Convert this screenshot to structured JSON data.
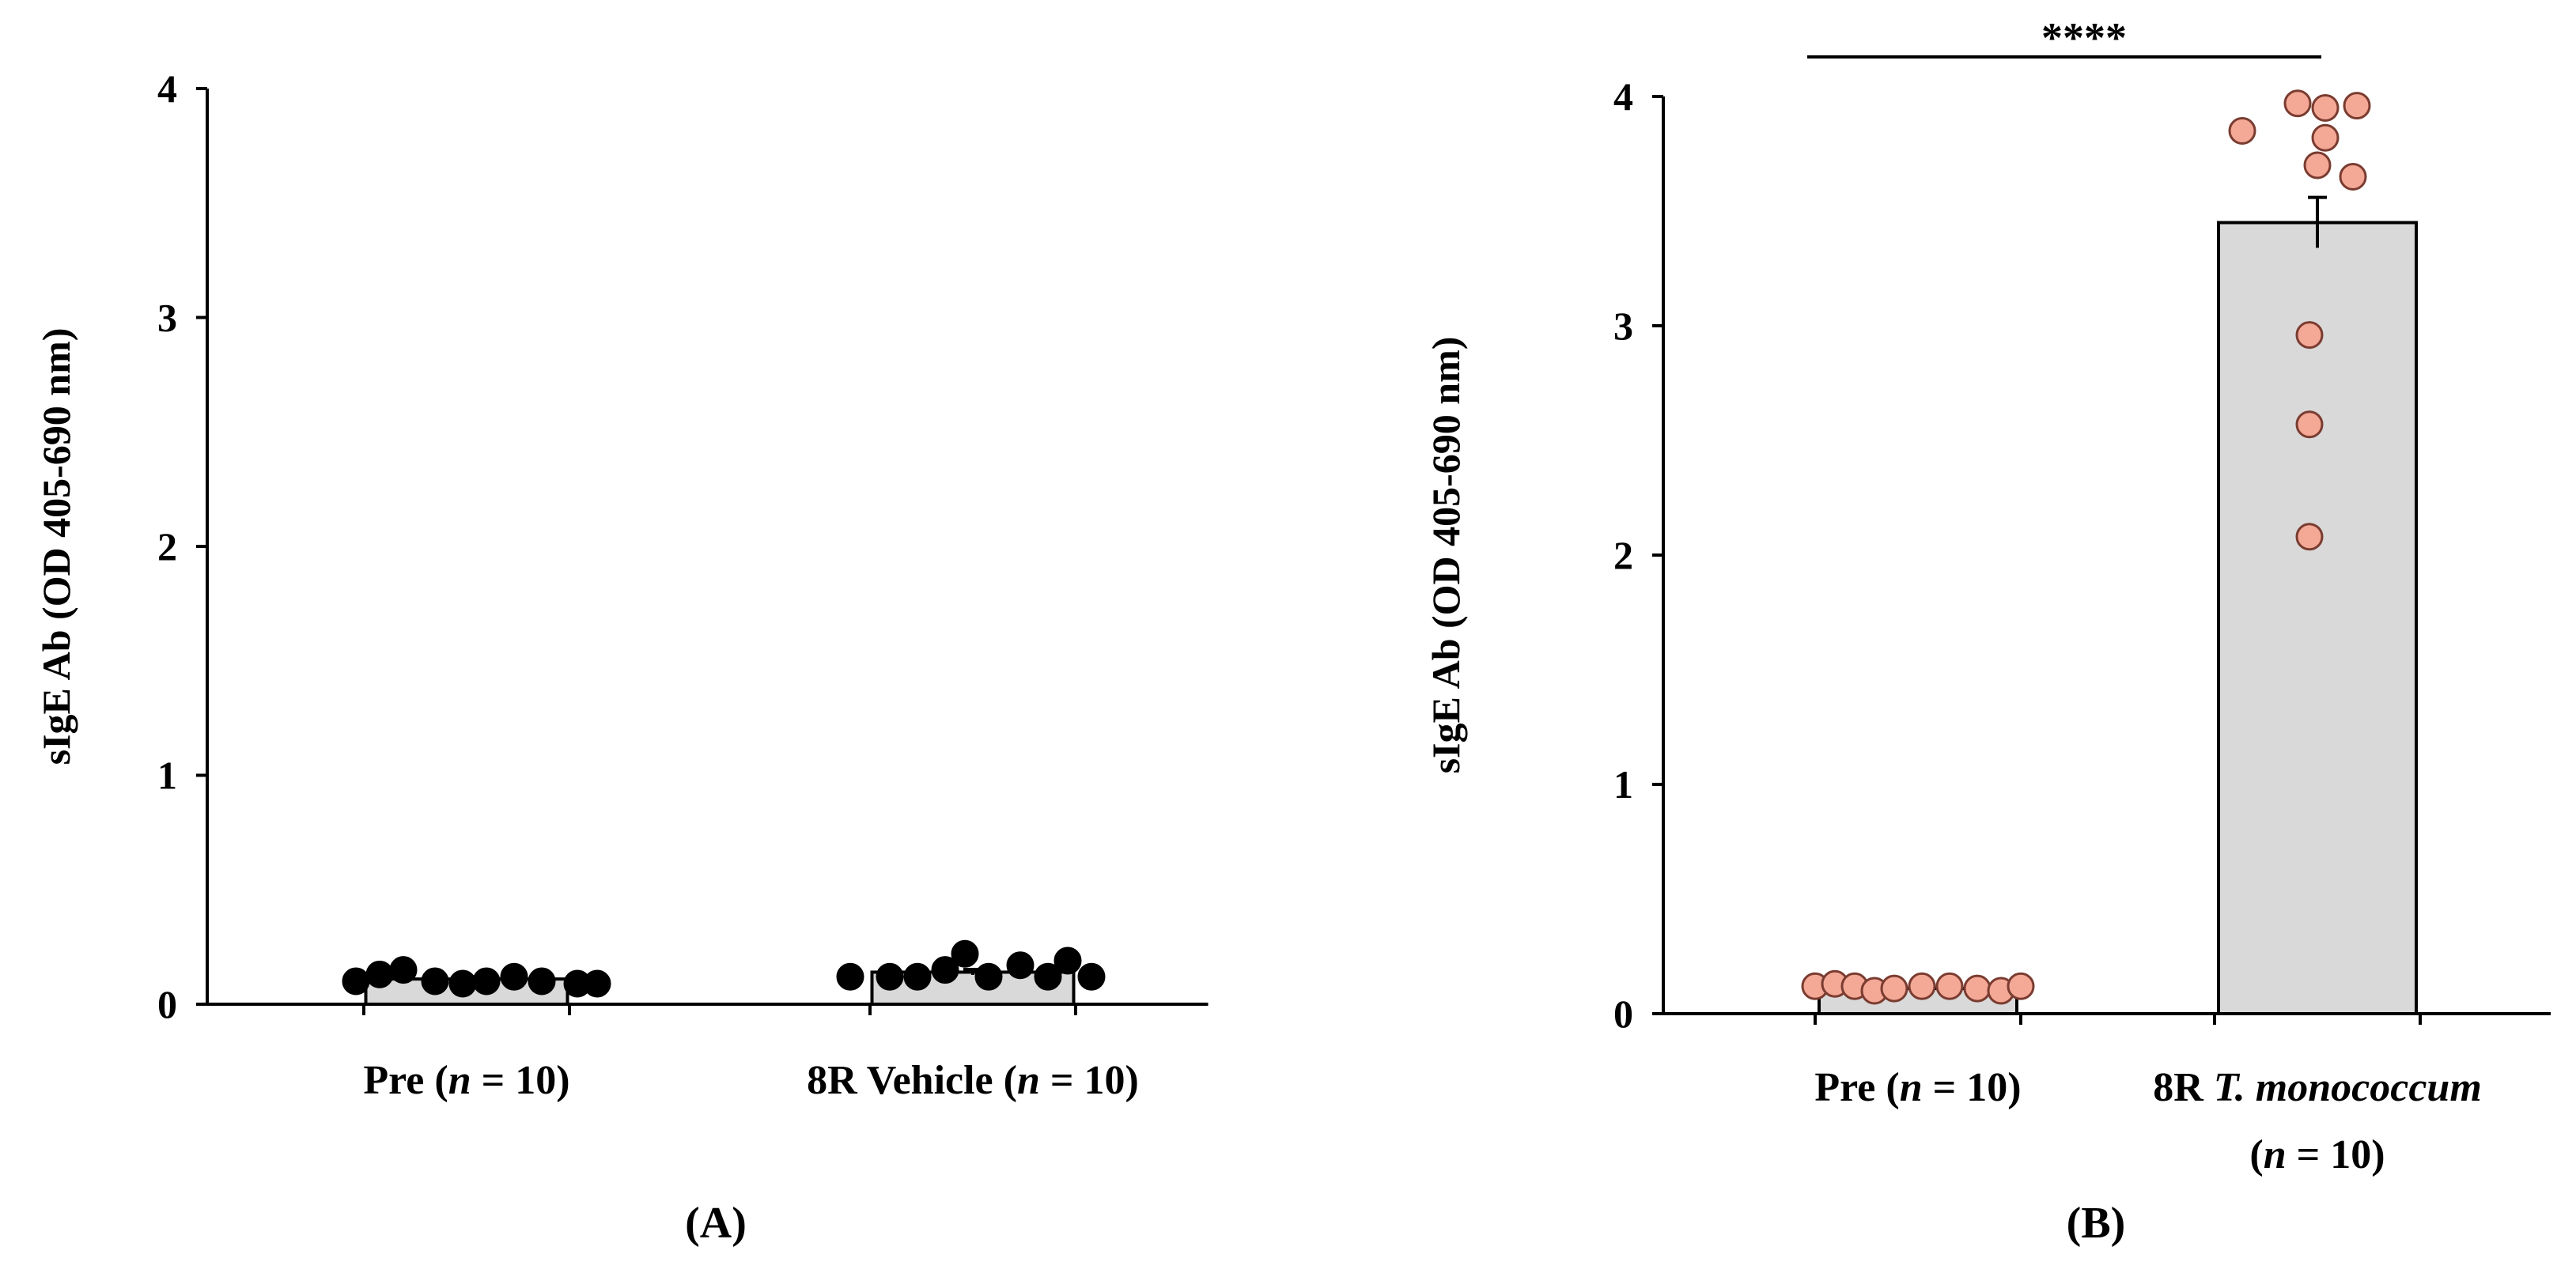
{
  "chart_data": [
    {
      "panel_label": "(A)",
      "type": "bar",
      "ylabel": "sIgE Ab (OD 405-690 nm)",
      "ylim": [
        0,
        4
      ],
      "yticks": [
        "0",
        "1",
        "2",
        "3",
        "4"
      ],
      "categories": [
        {
          "parts": [
            {
              "t": "Pre ("
            },
            {
              "t": "n",
              "i": true
            },
            {
              "t": " = 10)"
            }
          ],
          "lines": 1
        },
        {
          "parts": [
            {
              "t": "8R Vehicle ("
            },
            {
              "t": "n",
              "i": true
            },
            {
              "t": " = 10)"
            }
          ],
          "lines": 1
        }
      ],
      "bar_values": [
        0.11,
        0.14
      ],
      "error": [
        0.01,
        0.012
      ],
      "bar_fill": "#d9d9d9",
      "point_color": "#000000",
      "point_stroke": "#000000",
      "points": [
        [
          0.1,
          0.13,
          0.15,
          0.1,
          0.09,
          0.1,
          0.12,
          0.1,
          0.09,
          0.09
        ],
        [
          0.12,
          0.12,
          0.12,
          0.15,
          0.22,
          0.12,
          0.17,
          0.12,
          0.19,
          0.12
        ]
      ],
      "significance": null
    },
    {
      "panel_label": "(B)",
      "type": "bar",
      "ylabel": "sIgE Ab (OD 405-690 nm)",
      "ylim": [
        0,
        4
      ],
      "yticks": [
        "0",
        "1",
        "2",
        "3",
        "4"
      ],
      "categories": [
        {
          "parts": [
            {
              "t": "Pre ("
            },
            {
              "t": "n",
              "i": true
            },
            {
              "t": " = 10)"
            }
          ],
          "lines": 1
        },
        {
          "parts": [
            {
              "t": "8R "
            },
            {
              "t": "T. monococcum",
              "i": true
            }
          ],
          "line2": [
            {
              "t": "("
            },
            {
              "t": "n",
              "i": true
            },
            {
              "t": " = 10)"
            }
          ],
          "lines": 2
        }
      ],
      "bar_values": [
        0.11,
        3.45
      ],
      "error": [
        0.01,
        0.11
      ],
      "bar_fill": "#d9d9d9",
      "point_color": "#f4a896",
      "point_stroke": "#7a3c30",
      "points": [
        [
          0.12,
          0.13,
          0.12,
          0.1,
          0.11,
          0.12,
          0.12,
          0.11,
          0.1,
          0.12
        ],
        [
          3.85,
          3.97,
          3.7,
          3.95,
          3.82,
          3.96,
          3.65,
          2.96,
          2.57,
          2.08
        ]
      ],
      "significance": "****"
    }
  ]
}
